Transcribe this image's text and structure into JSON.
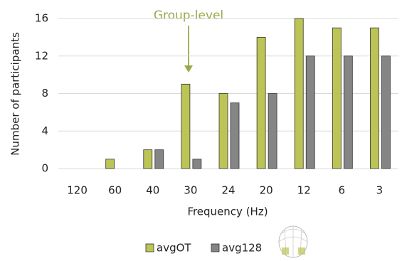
{
  "chart_data": {
    "type": "bar",
    "annotation": "Group-level",
    "x_label": "Frequency (Hz)",
    "y_label": "Number of participants",
    "categories": [
      "120",
      "60",
      "40",
      "30",
      "24",
      "20",
      "12",
      "6",
      "3"
    ],
    "series": [
      {
        "name": "avgOT",
        "color": "#bcc455",
        "values": [
          0,
          1,
          2,
          9,
          8,
          14,
          16,
          15,
          15
        ]
      },
      {
        "name": "avg128",
        "color": "#858585",
        "values": [
          0,
          0,
          2,
          1,
          7,
          8,
          12,
          12,
          12
        ]
      }
    ],
    "ylim": [
      0,
      16
    ],
    "yticks": [
      0,
      4,
      8,
      12,
      16
    ],
    "grid": true
  }
}
